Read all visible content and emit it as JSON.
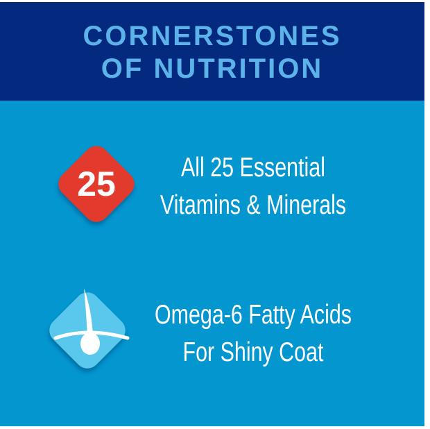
{
  "header": {
    "title_line1": "CORNERSTONES",
    "title_line2": "OF NUTRITION"
  },
  "colors": {
    "header_bg": "#042a7f",
    "title": "#5cb3ea",
    "body_bg": "#0396cf",
    "badge_red": "#e33a2e",
    "badge_light_blue": "#5ac8ec"
  },
  "features": [
    {
      "icon": "number-25-badge",
      "badge_text": "25",
      "line1": "All 25 Essential",
      "line2": "Vitamins & Minerals"
    },
    {
      "icon": "hair-follicle-icon",
      "line1": "Omega-6 Fatty Acids",
      "line2": "For Shiny Coat"
    }
  ]
}
